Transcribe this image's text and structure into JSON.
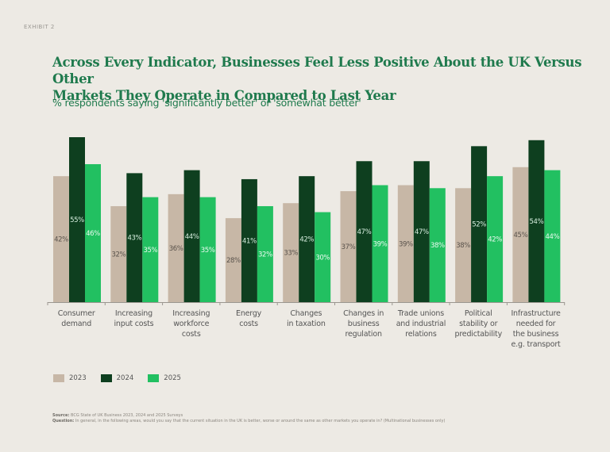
{
  "exhibit_label": "EXHIBIT 2",
  "title_line1": "Across Every Indicator, Businesses Feel Less Positive About the UK Versus Other",
  "title_line2": "Markets They Operate in Compared to Last Year",
  "subtitle": "% respondents saying 'significantly better' or 'somewhat better'",
  "colors": {
    "2023": "#c7b7a6",
    "2024": "#0e3f1f",
    "2025": "#22c061",
    "title": "#1f7a4d"
  },
  "legend": [
    {
      "label": "2023",
      "color": "#c7b7a6"
    },
    {
      "label": "2024",
      "color": "#0e3f1f"
    },
    {
      "label": "2025",
      "color": "#22c061"
    }
  ],
  "footnote": {
    "source_label": "Source:",
    "source_text": "BCG State of UK Business 2023, 2024 and 2025 Surveys",
    "question_label": "Question:",
    "question_text": "In general, in the following areas, would you say that the current situation in the UK is better, worse or around the same as other markets you operate in? (Multinational businesses only)"
  },
  "chart_data": {
    "type": "bar",
    "title": "Across Every Indicator, Businesses Feel Less Positive About the UK Versus Other Markets They Operate in Compared to Last Year",
    "subtitle": "% respondents saying 'significantly better' or 'somewhat better'",
    "xlabel": "",
    "ylabel": "",
    "ylim": [
      0,
      55
    ],
    "grid": false,
    "legend_position": "bottom-left",
    "categories": [
      [
        "Consumer",
        "demand"
      ],
      [
        "Increasing",
        "input costs"
      ],
      [
        "Increasing",
        "workforce",
        "costs"
      ],
      [
        "Energy",
        "costs"
      ],
      [
        "Changes",
        "in taxation"
      ],
      [
        "Changes in",
        "business",
        "regulation"
      ],
      [
        "Trade unions",
        "and industrial",
        "relations"
      ],
      [
        "Political",
        "stability or",
        "predictability"
      ],
      [
        "Infrastructure",
        "needed for",
        "the business",
        "e.g. transport"
      ]
    ],
    "series": [
      {
        "name": "2023",
        "values": [
          42,
          32,
          36,
          28,
          33,
          37,
          39,
          38,
          45
        ]
      },
      {
        "name": "2024",
        "values": [
          55,
          43,
          44,
          41,
          42,
          47,
          47,
          52,
          54
        ]
      },
      {
        "name": "2025",
        "values": [
          46,
          35,
          35,
          32,
          30,
          39,
          38,
          42,
          44
        ]
      }
    ],
    "value_suffix": "%"
  }
}
